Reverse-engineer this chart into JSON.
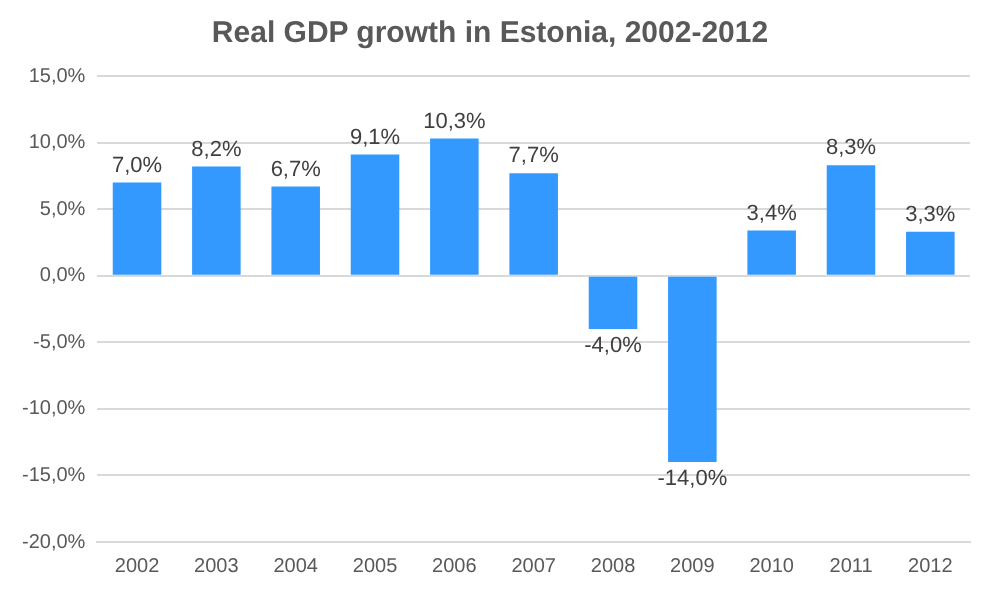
{
  "chart_data": {
    "type": "bar",
    "title": "Real GDP growth in Estonia, 2002-2012",
    "categories": [
      "2002",
      "2003",
      "2004",
      "2005",
      "2006",
      "2007",
      "2008",
      "2009",
      "2010",
      "2011",
      "2012"
    ],
    "values": [
      7.0,
      8.2,
      6.7,
      9.1,
      10.3,
      7.7,
      -4.0,
      -14.0,
      3.4,
      8.3,
      3.3
    ],
    "value_labels": [
      "7,0%",
      "8,2%",
      "6,7%",
      "9,1%",
      "10,3%",
      "7,7%",
      "-4,0%",
      "-14,0%",
      "3,4%",
      "8,3%",
      "3,3%"
    ],
    "color": "#3399ff",
    "ylim": [
      -20,
      15
    ],
    "yticks": [
      {
        "value": -20,
        "label": "-20,0%"
      },
      {
        "value": -15,
        "label": "-15,0%"
      },
      {
        "value": -10,
        "label": "-10,0%"
      },
      {
        "value": -5,
        "label": "-5,0%"
      },
      {
        "value": 0,
        "label": "0,0%"
      },
      {
        "value": 5,
        "label": "5,0%"
      },
      {
        "value": 10,
        "label": "10,0%"
      },
      {
        "value": 15,
        "label": "15,0%"
      }
    ],
    "grid": "y",
    "legend": false
  }
}
